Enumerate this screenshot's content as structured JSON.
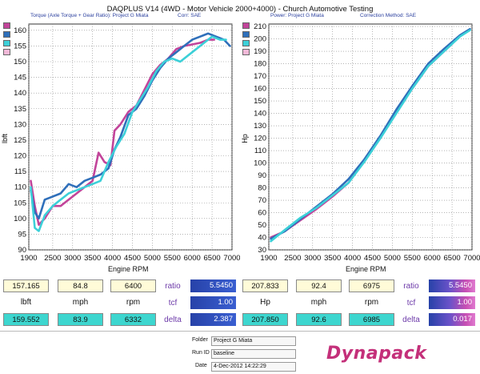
{
  "title": "DAQPLUS V14 (4WD - Motor Vehicle 2000+4000) - Church Automotive Testing",
  "colors": {
    "magenta": "#c2449a",
    "blue": "#2f6fba",
    "cyan": "#3cd0d8",
    "grid": "#888888"
  },
  "chart_data": [
    {
      "type": "line",
      "caption_left": "Torque (Axle Torque + Gear Ratio): Project G Miata",
      "caption_right": "Corr: SAE",
      "xlabel": "Engine RPM",
      "ylabel": "lbft",
      "xlim": [
        1900,
        7000
      ],
      "ylim": [
        90,
        162
      ],
      "xticks": [
        "1900",
        "2500",
        "3000",
        "3500",
        "4000",
        "4500",
        "5000",
        "5500",
        "6000",
        "6500",
        "7000"
      ],
      "yticks": [
        "90",
        "95",
        "100",
        "105",
        "110",
        "115",
        "120",
        "125",
        "130",
        "135",
        "140",
        "145",
        "150",
        "155",
        "160"
      ],
      "series": [
        {
          "color": "magenta",
          "x": [
            1950,
            2050,
            2150,
            2300,
            2500,
            2700,
            2900,
            3100,
            3300,
            3500,
            3650,
            3800,
            3950,
            4050,
            4200,
            4400,
            4600,
            4800,
            5000,
            5200,
            5400,
            5600,
            5800,
            6000,
            6200,
            6400,
            6550
          ],
          "y": [
            112,
            104,
            98,
            100,
            104,
            104,
            106,
            108,
            110,
            112,
            121,
            118,
            117,
            128,
            130,
            134,
            136,
            141,
            146,
            149,
            151,
            154,
            155,
            155.5,
            156,
            157,
            157
          ]
        },
        {
          "color": "blue",
          "x": [
            1950,
            2050,
            2150,
            2300,
            2500,
            2700,
            2900,
            3100,
            3300,
            3500,
            3700,
            3900,
            4050,
            4200,
            4400,
            4600,
            4800,
            5000,
            5200,
            5400,
            5600,
            5800,
            6000,
            6200,
            6400,
            6600,
            6800,
            6950
          ],
          "y": [
            109,
            102,
            100,
            106,
            107,
            108,
            111,
            110,
            112,
            113,
            114,
            116,
            122,
            126,
            133,
            135,
            139,
            144,
            148,
            151,
            153,
            155,
            157,
            158,
            159,
            158,
            157,
            155
          ]
        },
        {
          "color": "cyan",
          "x": [
            1950,
            2050,
            2150,
            2300,
            2500,
            2700,
            2900,
            3100,
            3300,
            3500,
            3700,
            3900,
            4100,
            4300,
            4500,
            4700,
            4900,
            5100,
            5300,
            5500,
            5700,
            5900,
            6100,
            6300,
            6500,
            6700,
            6850
          ],
          "y": [
            110,
            97,
            96,
            101,
            104,
            106,
            108,
            109,
            110,
            111,
            112,
            118,
            123,
            127,
            134,
            138,
            142,
            147,
            150,
            151,
            150,
            152,
            154,
            156,
            158,
            157,
            157
          ]
        }
      ]
    },
    {
      "type": "line",
      "caption_left": "Power: Project G Miata",
      "caption_right": "Correction Method: SAE",
      "xlabel": "Engine RPM",
      "ylabel": "Hp",
      "xlim": [
        1900,
        7000
      ],
      "ylim": [
        30,
        212
      ],
      "xticks": [
        "1900",
        "2500",
        "3000",
        "3500",
        "4000",
        "4500",
        "5000",
        "5500",
        "6000",
        "6500",
        "7000"
      ],
      "yticks": [
        "30",
        "40",
        "50",
        "60",
        "70",
        "80",
        "90",
        "100",
        "110",
        "120",
        "130",
        "140",
        "150",
        "160",
        "170",
        "180",
        "190",
        "200",
        "210"
      ],
      "series": [
        {
          "color": "magenta",
          "x": [
            1950,
            2300,
            2700,
            3100,
            3500,
            3900,
            4300,
            4700,
            5100,
            5500,
            5900,
            6300,
            6500
          ],
          "y": [
            40,
            45,
            54,
            63,
            73,
            84,
            102,
            120,
            141,
            160,
            178,
            190,
            196
          ]
        },
        {
          "color": "blue",
          "x": [
            1950,
            2300,
            2700,
            3100,
            3500,
            3900,
            4300,
            4700,
            5100,
            5500,
            5900,
            6300,
            6700,
            6950
          ],
          "y": [
            39,
            45,
            55,
            65,
            75,
            87,
            103,
            122,
            143,
            162,
            180,
            192,
            203,
            208
          ]
        },
        {
          "color": "cyan",
          "x": [
            1950,
            2300,
            2700,
            3100,
            3500,
            3900,
            4300,
            4700,
            5100,
            5500,
            5900,
            6300,
            6700,
            6950
          ],
          "y": [
            37,
            46,
            56,
            64,
            74,
            84,
            101,
            120,
            140,
            160,
            178,
            190,
            202,
            207
          ]
        }
      ]
    }
  ],
  "torque_panel": {
    "top_vals": [
      "157.165",
      "84.8",
      "6400"
    ],
    "labels": [
      "lbft",
      "mph",
      "rpm"
    ],
    "bottom_vals": [
      "159.552",
      "83.9",
      "6332"
    ],
    "side_labels": [
      "ratio",
      "tcf",
      "delta"
    ],
    "side_vals": [
      "5.5450",
      "1.00",
      "2.387"
    ]
  },
  "power_panel": {
    "top_vals": [
      "207.833",
      "92.4",
      "6975"
    ],
    "labels": [
      "Hp",
      "mph",
      "rpm"
    ],
    "bottom_vals": [
      "207.850",
      "92.6",
      "6985"
    ],
    "side_labels": [
      "ratio",
      "tcf",
      "delta"
    ],
    "side_vals": [
      "5.5450",
      "1.00",
      "0.017"
    ]
  },
  "footer": {
    "folder_label": "Folder",
    "folder_val": "Project G Miata",
    "run_label": "Run ID",
    "run_val": "baseline",
    "date_label": "Date",
    "date_val": "4-Dec-2012 14:22:29",
    "logo": "Dynapack"
  }
}
